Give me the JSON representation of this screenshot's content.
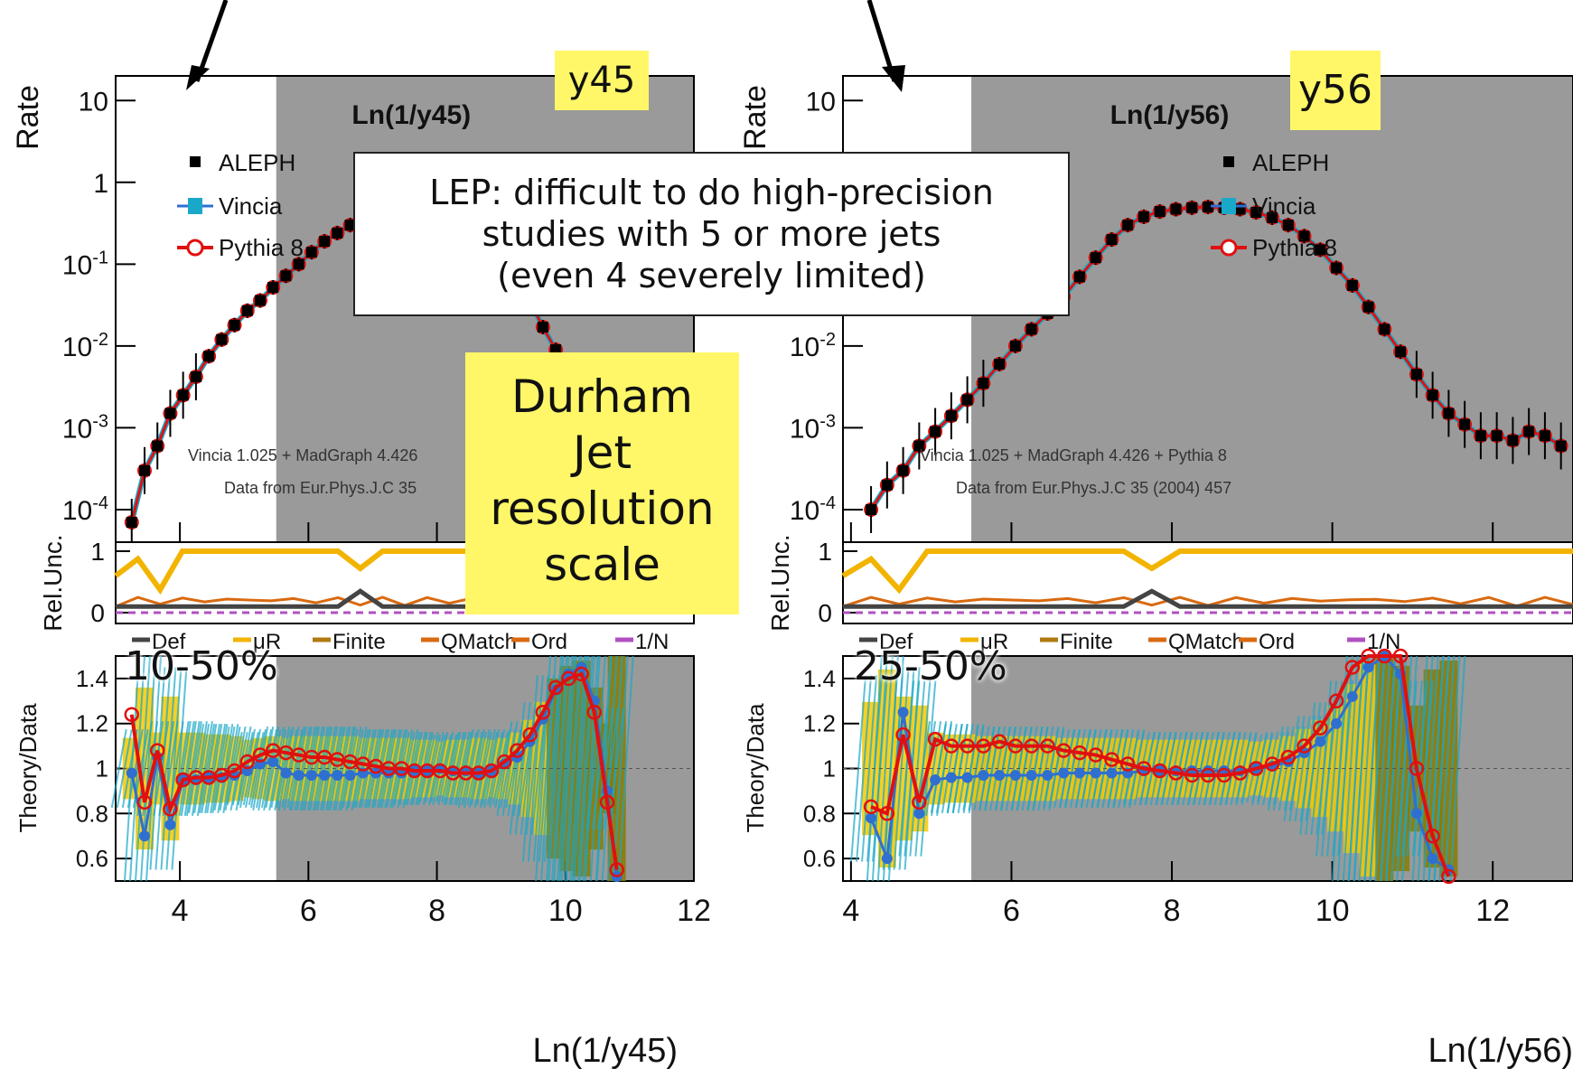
{
  "chart_data": [
    {
      "type": "line",
      "title": "Ln(1/y45)",
      "tag": "y45",
      "range_label": "10-50%",
      "xlabel": "Ln(1/y45)",
      "ylabel": "Rate",
      "ratio_ylabel": "Theory/Data",
      "unc_ylabel": "Rel.Unc.",
      "xlim": [
        3,
        12
      ],
      "xticks": [
        "4",
        "6",
        "8",
        "10",
        "12"
      ],
      "ylim": [
        4e-05,
        20
      ],
      "yscale": "log",
      "yticks": [
        "10",
        "1",
        "10-1",
        "10-2",
        "10-3",
        "10-4"
      ],
      "ratio_ylim": [
        0.5,
        1.5
      ],
      "ratio_yticks": [
        "1.4",
        "1.2",
        "1",
        "0.8",
        "0.6"
      ],
      "unc_yticks": [
        "1",
        "0"
      ],
      "shaded_from_x": 5.5,
      "annotation_line1": "Vincia 1.025 + MadGraph 4.426",
      "annotation_line2": "Data from Eur.Phys.J.C 35",
      "legend": [
        "ALEPH",
        "Vincia",
        "Pythia 8"
      ],
      "series": [
        {
          "name": "ALEPH",
          "x": [
            3.25,
            3.45,
            3.65,
            3.85,
            4.05,
            4.25,
            4.45,
            4.65,
            4.85,
            5.05,
            5.25,
            5.45,
            5.65,
            5.85,
            6.05,
            6.25,
            6.45,
            6.65,
            6.85,
            7.05,
            7.25,
            7.45,
            7.65,
            7.85,
            8.05,
            8.25,
            8.45,
            8.65,
            8.85,
            9.05,
            9.25,
            9.45,
            9.65,
            9.85,
            10.05,
            10.25,
            10.45,
            10.65
          ],
          "y": [
            7e-05,
            0.0003,
            0.0006,
            0.0015,
            0.0025,
            0.0042,
            0.0075,
            0.012,
            0.018,
            0.027,
            0.036,
            0.052,
            0.072,
            0.1,
            0.14,
            0.19,
            0.24,
            0.3,
            0.36,
            0.42,
            0.47,
            0.5,
            0.51,
            0.5,
            0.47,
            0.42,
            0.35,
            0.27,
            0.19,
            0.12,
            0.07,
            0.035,
            0.017,
            0.009,
            0.005,
            0.003,
            0.002,
            0.001
          ]
        }
      ],
      "ratio_series": [
        {
          "name": "Vincia",
          "x": [
            3.25,
            3.45,
            3.65,
            3.85,
            4.05,
            4.25,
            4.45,
            4.65,
            4.85,
            5.05,
            5.25,
            5.45,
            5.65,
            5.85,
            6.05,
            6.25,
            6.45,
            6.65,
            6.85,
            7.05,
            7.25,
            7.45,
            7.65,
            7.85,
            8.05,
            8.25,
            8.45,
            8.65,
            8.85,
            9.05,
            9.25,
            9.45,
            9.65,
            9.85,
            10.05,
            10.25,
            10.45,
            10.65,
            10.8
          ],
          "y": [
            0.98,
            0.7,
            1.05,
            0.75,
            0.95,
            0.95,
            0.96,
            0.96,
            0.97,
            0.99,
            1.02,
            1.03,
            0.98,
            0.97,
            0.97,
            0.97,
            0.97,
            0.97,
            0.98,
            0.98,
            0.98,
            0.98,
            0.99,
            0.99,
            1.0,
            0.99,
            0.99,
            0.98,
            0.99,
            1.02,
            1.05,
            1.12,
            1.22,
            1.35,
            1.42,
            1.45,
            1.3,
            0.9,
            0.52
          ]
        },
        {
          "name": "Pythia 8",
          "x": [
            3.25,
            3.45,
            3.65,
            3.85,
            4.05,
            4.25,
            4.45,
            4.65,
            4.85,
            5.05,
            5.25,
            5.45,
            5.65,
            5.85,
            6.05,
            6.25,
            6.45,
            6.65,
            6.85,
            7.05,
            7.25,
            7.45,
            7.65,
            7.85,
            8.05,
            8.25,
            8.45,
            8.65,
            8.85,
            9.05,
            9.25,
            9.45,
            9.65,
            9.85,
            10.05,
            10.25,
            10.45,
            10.65,
            10.8
          ],
          "y": [
            1.24,
            0.85,
            1.08,
            0.82,
            0.95,
            0.96,
            0.96,
            0.97,
            0.99,
            1.03,
            1.06,
            1.08,
            1.07,
            1.06,
            1.05,
            1.05,
            1.04,
            1.03,
            1.02,
            1.01,
            1.0,
            1.0,
            0.99,
            0.99,
            0.99,
            0.98,
            0.98,
            0.98,
            0.99,
            1.03,
            1.08,
            1.15,
            1.25,
            1.36,
            1.4,
            1.42,
            1.25,
            0.85,
            0.55
          ]
        }
      ],
      "unc_legend": [
        "Def",
        "μR",
        "Finite",
        "QMatch",
        "Ord",
        "1/N"
      ]
    },
    {
      "type": "line",
      "title": "Ln(1/y56)",
      "tag": "y56",
      "range_label": "25-50%",
      "xlabel": "Ln(1/y56)",
      "ylabel": "Rate",
      "ratio_ylabel": "Theory/Data",
      "unc_ylabel": "Rel.Unc.",
      "xlim": [
        3.9,
        13
      ],
      "xticks": [
        "4",
        "6",
        "8",
        "10",
        "12"
      ],
      "ylim": [
        4e-05,
        20
      ],
      "yscale": "log",
      "yticks": [
        "10",
        "10-2",
        "10-3",
        "10-4"
      ],
      "ratio_ylim": [
        0.5,
        1.5
      ],
      "ratio_yticks": [
        "1.4",
        "1.2",
        "1",
        "0.8",
        "0.6"
      ],
      "unc_yticks": [
        "1",
        "0"
      ],
      "shaded_from_x": 5.5,
      "annotation_line1": "Vincia 1.025 + MadGraph 4.426 + Pythia 8",
      "annotation_line2": "Data from Eur.Phys.J.C 35 (2004) 457",
      "legend": [
        "ALEPH",
        "Vincia",
        "Pythia 8"
      ],
      "series": [
        {
          "name": "ALEPH",
          "x": [
            4.25,
            4.45,
            4.65,
            4.85,
            5.05,
            5.25,
            5.45,
            5.65,
            5.85,
            6.05,
            6.25,
            6.45,
            6.65,
            6.85,
            7.05,
            7.25,
            7.45,
            7.65,
            7.85,
            8.05,
            8.25,
            8.45,
            8.65,
            8.85,
            9.05,
            9.25,
            9.45,
            9.65,
            9.85,
            10.05,
            10.25,
            10.45,
            10.65,
            10.85,
            11.05,
            11.25,
            11.45,
            11.65,
            11.85,
            12.05,
            12.25,
            12.45,
            12.65,
            12.85
          ],
          "y": [
            0.0001,
            0.0002,
            0.0003,
            0.0006,
            0.0009,
            0.0014,
            0.0022,
            0.0035,
            0.006,
            0.01,
            0.016,
            0.025,
            0.04,
            0.07,
            0.12,
            0.2,
            0.3,
            0.38,
            0.44,
            0.47,
            0.49,
            0.5,
            0.49,
            0.47,
            0.43,
            0.37,
            0.3,
            0.22,
            0.15,
            0.09,
            0.055,
            0.03,
            0.016,
            0.0085,
            0.0045,
            0.0025,
            0.0015,
            0.0011,
            0.0008,
            0.0008,
            0.0007,
            0.0009,
            0.0008,
            0.0006
          ]
        }
      ],
      "ratio_series": [
        {
          "name": "Vincia",
          "x": [
            4.25,
            4.45,
            4.65,
            4.85,
            5.05,
            5.25,
            5.45,
            5.65,
            5.85,
            6.05,
            6.25,
            6.45,
            6.65,
            6.85,
            7.05,
            7.25,
            7.45,
            7.65,
            7.85,
            8.05,
            8.25,
            8.45,
            8.65,
            8.85,
            9.05,
            9.25,
            9.45,
            9.65,
            9.85,
            10.05,
            10.25,
            10.45,
            10.65,
            10.85,
            11.05,
            11.25,
            11.45
          ],
          "y": [
            0.78,
            0.6,
            1.25,
            0.8,
            0.95,
            0.96,
            0.96,
            0.97,
            0.97,
            0.97,
            0.97,
            0.97,
            0.98,
            0.98,
            0.98,
            0.98,
            0.98,
            0.99,
            0.99,
            0.99,
            0.99,
            0.99,
            0.99,
            0.99,
            1.0,
            1.01,
            1.03,
            1.07,
            1.12,
            1.2,
            1.32,
            1.45,
            1.5,
            1.42,
            0.8,
            0.6,
            0.55
          ]
        },
        {
          "name": "Pythia 8",
          "x": [
            4.25,
            4.45,
            4.65,
            4.85,
            5.05,
            5.25,
            5.45,
            5.65,
            5.85,
            6.05,
            6.25,
            6.45,
            6.65,
            6.85,
            7.05,
            7.25,
            7.45,
            7.65,
            7.85,
            8.05,
            8.25,
            8.45,
            8.65,
            8.85,
            9.05,
            9.25,
            9.45,
            9.65,
            9.85,
            10.05,
            10.25,
            10.45,
            10.65,
            10.85,
            11.05,
            11.25,
            11.45
          ],
          "y": [
            0.83,
            0.8,
            1.15,
            0.85,
            1.13,
            1.1,
            1.1,
            1.1,
            1.12,
            1.1,
            1.1,
            1.1,
            1.08,
            1.07,
            1.06,
            1.04,
            1.02,
            1.0,
            0.99,
            0.98,
            0.97,
            0.97,
            0.97,
            0.98,
            1.0,
            1.02,
            1.05,
            1.1,
            1.18,
            1.3,
            1.45,
            1.55,
            1.55,
            1.5,
            1.0,
            0.7,
            0.52
          ]
        }
      ],
      "unc_legend": [
        "Def",
        "μR",
        "Finite",
        "QMatch",
        "Ord",
        "1/N"
      ]
    }
  ],
  "callout": [
    "LEP: difficult to do high-precision",
    "studies with 5 or more jets",
    "(even 4 severely limited)"
  ],
  "durham": [
    "Durham",
    "Jet",
    "resolution",
    "scale"
  ],
  "colors": {
    "shade": "#9a9a9a",
    "aleph": "#000000",
    "vincia": "#2f6fd0",
    "vincia_band": "#1aa8c8",
    "pythia": "#e01010",
    "yellow_label": "#fff768",
    "unc_yellow": "#f2b400",
    "unc_orange": "#d96a10",
    "unc_gray": "#444444",
    "olive": "#8a7a00"
  }
}
